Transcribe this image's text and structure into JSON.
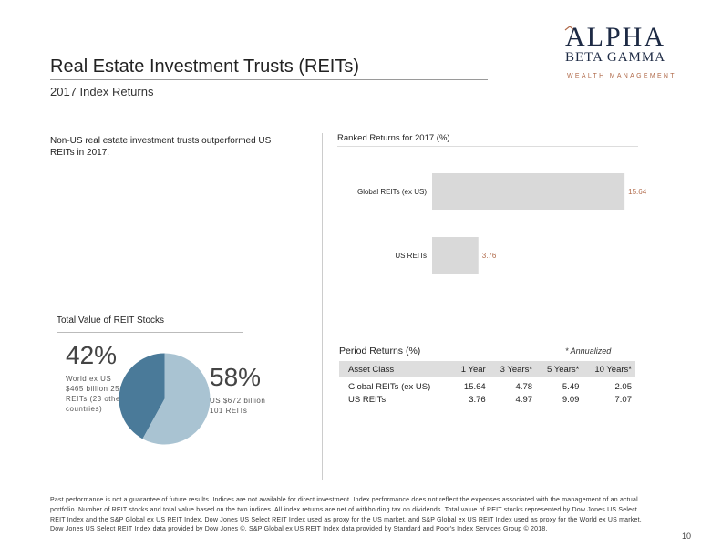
{
  "header": {
    "title": "Real Estate Investment Trusts (REITs)",
    "subtitle": "2017 Index Returns"
  },
  "logo": {
    "line1": "ALPHA",
    "line2": "BETA GAMMA",
    "line3": "WEALTH MANAGEMENT",
    "colors": {
      "navy": "#1d2a44",
      "accent": "#b06a4a"
    }
  },
  "intro_text": "Non-US real estate investment trusts outperformed US REITs in 2017.",
  "ranked_returns": {
    "title": "Ranked Returns for 2017 (%)",
    "chart_data": {
      "type": "bar",
      "orientation": "horizontal",
      "categories": [
        "Global REITs (ex US)",
        "US REITs"
      ],
      "values": [
        15.64,
        3.76
      ],
      "value_labels": [
        "15.64",
        "3.76"
      ],
      "bar_color": "#d9d9d9",
      "label_color": "#b06a4a",
      "xlim": [
        0,
        16
      ]
    }
  },
  "total_value": {
    "title": "Total Value of REIT Stocks",
    "world": {
      "percent": "42%",
      "desc": "World ex US $465 billion 251 REITs (23 other countries)"
    },
    "us": {
      "percent": "58%",
      "desc": "US $672 billion 101 REITs"
    },
    "chart_data": {
      "type": "pie",
      "categories": [
        "World ex US",
        "US"
      ],
      "values": [
        42,
        58
      ],
      "colors": [
        "#4a7a99",
        "#a9c3d2"
      ]
    }
  },
  "period_returns": {
    "title": "Period Returns (%)",
    "note": "* Annualized",
    "columns": [
      "Asset Class",
      "1 Year",
      "3 Years*",
      "5 Years*",
      "10 Years*"
    ],
    "rows": [
      [
        "Global REITs (ex US)",
        "15.64",
        "4.78",
        "5.49",
        "2.05"
      ],
      [
        "US REITs",
        "3.76",
        "4.97",
        "9.09",
        "7.07"
      ]
    ]
  },
  "disclaimer": "Past performance is not a guarantee of future results. Indices are not available for direct investment. Index performance does not reflect the expenses associated with the management of an actual portfolio. Number of REIT stocks and total value based on the two indices. All index returns are net of withholding tax on dividends. Total value of REIT stocks represented by Dow Jones US Select REIT Index and the S&P Global ex US REIT Index. Dow Jones US Select REIT Index used as proxy for the US market, and S&P Global ex US REIT Index used as proxy for the World ex US market. Dow Jones US Select REIT Index data provided by Dow Jones ©. S&P Global ex US REIT Index data provided by Standard and Poor's Index Services Group © 2018.",
  "page_number": "10"
}
